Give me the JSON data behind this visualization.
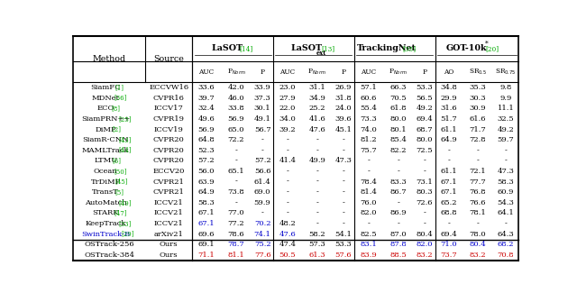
{
  "rows": [
    [
      "SiamFC",
      "[1]",
      "ECCVW16",
      "33.6",
      "42.0",
      "33.9",
      "23.0",
      "31.1",
      "26.9",
      "57.1",
      "66.3",
      "53.3",
      "34.8",
      "35.3",
      "9.8"
    ],
    [
      "MDNet",
      "[36]",
      "CVPR16",
      "39.7",
      "46.0",
      "37.3",
      "27.9",
      "34.9",
      "31.8",
      "60.6",
      "70.5",
      "56.5",
      "29.9",
      "30.3",
      "9.9"
    ],
    [
      "ECO",
      "[8]",
      "ICCV17",
      "32.4",
      "33.8",
      "30.1",
      "22.0",
      "25.2",
      "24.0",
      "55.4",
      "61.8",
      "49.2",
      "31.6",
      "30.9",
      "11.1"
    ],
    [
      "SiamPRN++",
      "[25]",
      "CVPR19",
      "49.6",
      "56.9",
      "49.1",
      "34.0",
      "41.6",
      "39.6",
      "73.3",
      "80.0",
      "69.4",
      "51.7",
      "61.6",
      "32.5"
    ],
    [
      "DiMP",
      "[2]",
      "ICCV19",
      "56.9",
      "65.0",
      "56.7",
      "39.2",
      "47.6",
      "45.1",
      "74.0",
      "80.1",
      "68.7",
      "61.1",
      "71.7",
      "49.2"
    ],
    [
      "SiamR-CNN",
      "[43]",
      "CVPR20",
      "64.8",
      "72.2",
      "-",
      "-",
      "-",
      "-",
      "81.2",
      "85.4",
      "80.0",
      "64.9",
      "72.8",
      "59.7"
    ],
    [
      "MAMLTrack",
      "[44]",
      "CVPR20",
      "52.3",
      "-",
      "-",
      "-",
      "-",
      "-",
      "75.7",
      "82.2",
      "72.5",
      "-",
      "-",
      "-"
    ],
    [
      "LTMU",
      "[6]",
      "CVPR20",
      "57.2",
      "-",
      "57.2",
      "41.4",
      "49.9",
      "47.3",
      "-",
      "-",
      "-",
      "-",
      "-",
      "-"
    ],
    [
      "Ocean",
      "[50]",
      "ECCV20",
      "56.0",
      "65.1",
      "56.6",
      "-",
      "-",
      "-",
      "-",
      "-",
      "-",
      "61.1",
      "72.1",
      "47.3"
    ],
    [
      "TrDiMP",
      "[45]",
      "CVPR21",
      "63.9",
      "-",
      "61.4",
      "-",
      "-",
      "-",
      "78.4",
      "83.3",
      "73.1",
      "67.1",
      "77.7",
      "58.3"
    ],
    [
      "TransT",
      "[5]",
      "CVPR21",
      "64.9",
      "73.8",
      "69.0",
      "-",
      "-",
      "-",
      "81.4",
      "86.7",
      "80.3",
      "67.1",
      "76.8",
      "60.9"
    ],
    [
      "AutoMatch",
      "[49]",
      "ICCV21",
      "58.3",
      "-",
      "59.9",
      "-",
      "-",
      "-",
      "76.0",
      "-",
      "72.6",
      "65.2",
      "76.6",
      "54.3"
    ],
    [
      "STARK",
      "[47]",
      "ICCV21",
      "67.1",
      "77.0",
      "-",
      "-",
      "-",
      "-",
      "82.0",
      "86.9",
      "-",
      "68.8",
      "78.1",
      "64.1"
    ],
    [
      "KeepTrack",
      "[33]",
      "ICCV21",
      "67.1",
      "77.2",
      "70.2",
      "48.2",
      "-",
      "-",
      "-",
      "-",
      "-",
      "-",
      "-",
      "-"
    ],
    [
      "SwinTrack-B",
      "[29]",
      "arXiv21",
      "69.6",
      "78.6",
      "74.1",
      "47.6",
      "58.2",
      "54.1",
      "82.5",
      "87.0",
      "80.4",
      "69.4",
      "78.0",
      "64.3"
    ],
    [
      "OSTrack-256",
      "",
      "Ours",
      "69.1",
      "78.7",
      "75.2",
      "47.4",
      "57.3",
      "53.3",
      "83.1",
      "87.8",
      "82.0",
      "71.0",
      "80.4",
      "68.2"
    ],
    [
      "OSTrack-384",
      "",
      "Ours",
      "71.1",
      "81.1",
      "77.6",
      "50.5",
      "61.3",
      "57.6",
      "83.9",
      "88.5",
      "83.2",
      "73.7",
      "83.2",
      "70.8"
    ]
  ],
  "special_cells_blue": [
    [
      13,
      3
    ],
    [
      13,
      5
    ],
    [
      14,
      5
    ],
    [
      14,
      6
    ],
    [
      15,
      4
    ],
    [
      15,
      5
    ],
    [
      15,
      9
    ],
    [
      15,
      10
    ],
    [
      15,
      11
    ],
    [
      15,
      12
    ],
    [
      15,
      13
    ],
    [
      15,
      14
    ]
  ],
  "special_cells_red": [
    [
      16,
      3
    ],
    [
      16,
      4
    ],
    [
      16,
      5
    ],
    [
      16,
      6
    ],
    [
      16,
      7
    ],
    [
      16,
      8
    ],
    [
      16,
      9
    ],
    [
      16,
      10
    ],
    [
      16,
      11
    ],
    [
      16,
      12
    ],
    [
      16,
      13
    ],
    [
      16,
      14
    ]
  ],
  "ref_green_rows": [
    0,
    1,
    2,
    3,
    4,
    5,
    6,
    7,
    8,
    9,
    10,
    11,
    12,
    13,
    14
  ],
  "swintrack_blue_name": true
}
